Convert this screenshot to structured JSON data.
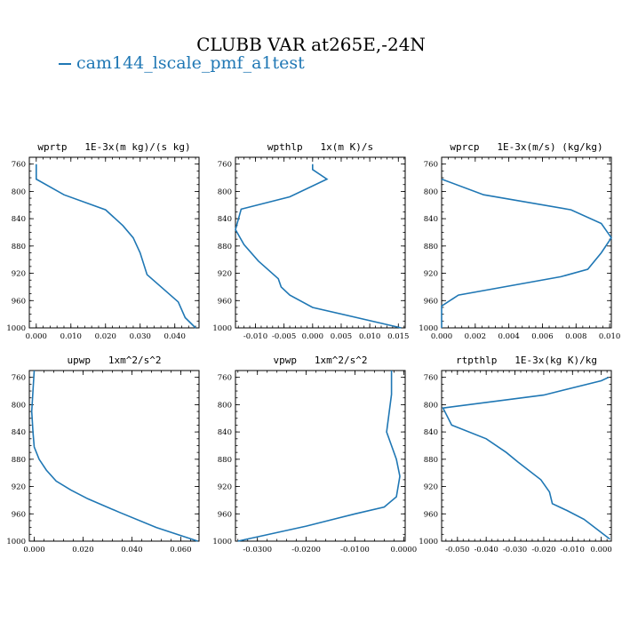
{
  "figure": {
    "title": "CLUBB VAR at265E,-24N",
    "legend_label": "cam144_lscale_pmf_a1test",
    "line_color": "#1f77b4"
  },
  "chart_data": [
    {
      "type": "line",
      "title": "wprtp   1E-3x(m kg)/(s kg)",
      "ylim": [
        1000,
        750
      ],
      "yticks": [
        760,
        800,
        840,
        880,
        920,
        960,
        1000
      ],
      "xlim": [
        -0.002,
        0.047
      ],
      "xticks": [
        0.0,
        0.01,
        0.02,
        0.03,
        0.04
      ],
      "xticklabels": [
        "0.000",
        "0.010",
        "0.020",
        "0.030",
        "0.040"
      ],
      "series": [
        {
          "x": [
            0.0,
            0.0,
            0.008,
            0.02,
            0.025,
            0.028,
            0.03,
            0.032,
            0.041,
            0.043,
            0.046
          ],
          "y": [
            760,
            782,
            805,
            827,
            850,
            868,
            890,
            922,
            962,
            985,
            1000
          ]
        }
      ]
    },
    {
      "type": "line",
      "title": "wpthlp   1x(m K)/s",
      "ylim": [
        1000,
        750
      ],
      "yticks": [
        760,
        800,
        840,
        880,
        920,
        960,
        1000
      ],
      "xlim": [
        -0.0135,
        0.0162
      ],
      "xticks": [
        -0.01,
        -0.005,
        0.0,
        0.005,
        0.01,
        0.015
      ],
      "xticklabels": [
        "-0.010",
        "-0.005",
        "0.000",
        "0.005",
        "0.010",
        "0.015"
      ],
      "series": [
        {
          "x": [
            0.0,
            0.0,
            0.0025,
            -0.004,
            -0.0125,
            -0.0135,
            -0.012,
            -0.0095,
            -0.006,
            -0.0055,
            -0.004,
            0.0,
            0.0155
          ],
          "y": [
            760,
            768,
            782,
            808,
            826,
            856,
            878,
            902,
            928,
            940,
            952,
            970,
            1000
          ]
        }
      ]
    },
    {
      "type": "line",
      "title": "wprcp   1E-3x(m/s) (kg/kg)",
      "ylim": [
        1000,
        750
      ],
      "yticks": [
        760,
        800,
        840,
        880,
        920,
        960,
        1000
      ],
      "xlim": [
        0.0,
        0.0101
      ],
      "xticks": [
        0.0,
        0.002,
        0.004,
        0.006,
        0.008,
        0.01
      ],
      "xticklabels": [
        "0.000",
        "0.002",
        "0.004",
        "0.006",
        "0.008",
        "0.010"
      ],
      "series": [
        {
          "x": [
            0.0,
            0.0025,
            0.0077,
            0.0095,
            0.0101,
            0.0095,
            0.0087,
            0.0071,
            0.001,
            0.0,
            0.0
          ],
          "y": [
            782,
            805,
            827,
            847,
            868,
            890,
            914,
            925,
            952,
            968,
            1000
          ]
        }
      ]
    },
    {
      "type": "line",
      "title": "upwp   1xm^2/s^2",
      "ylim": [
        1000,
        750
      ],
      "yticks": [
        760,
        800,
        840,
        880,
        920,
        960,
        1000
      ],
      "xlim": [
        -0.002,
        0.0675
      ],
      "xticks": [
        0.0,
        0.02,
        0.04,
        0.06
      ],
      "xticklabels": [
        "0.000",
        "0.020",
        "0.040",
        "0.060"
      ],
      "series": [
        {
          "x": [
            0.0,
            -0.0005,
            -0.001,
            -0.0005,
            0.0,
            0.002,
            0.005,
            0.009,
            0.015,
            0.022,
            0.035,
            0.05,
            0.067
          ],
          "y": [
            750,
            780,
            810,
            840,
            862,
            880,
            896,
            912,
            925,
            938,
            958,
            980,
            1000
          ]
        }
      ]
    },
    {
      "type": "line",
      "title": "vpwp   1xm^2/s^2",
      "ylim": [
        1000,
        750
      ],
      "yticks": [
        760,
        800,
        840,
        880,
        920,
        960,
        1000
      ],
      "xlim": [
        -0.0345,
        0.0003
      ],
      "xticks": [
        -0.03,
        -0.02,
        -0.01,
        0.0
      ],
      "xticklabels": [
        "-0.0300",
        "-0.0200",
        "-0.0100",
        "0.0000"
      ],
      "series": [
        {
          "x": [
            -0.0025,
            -0.0025,
            -0.003,
            -0.0035,
            -0.0025,
            -0.0015,
            -0.0008,
            -0.0015,
            -0.004,
            -0.01,
            -0.02,
            -0.034
          ],
          "y": [
            750,
            785,
            812,
            840,
            860,
            880,
            905,
            935,
            950,
            960,
            978,
            1000
          ]
        }
      ]
    },
    {
      "type": "line",
      "title": "rtpthlp   1E-3x(kg K)/kg",
      "ylim": [
        1000,
        750
      ],
      "yticks": [
        760,
        800,
        840,
        880,
        920,
        960,
        1000
      ],
      "xlim": [
        -0.0555,
        0.0035
      ],
      "xticks": [
        -0.05,
        -0.04,
        -0.03,
        -0.02,
        -0.01,
        0.0
      ],
      "xticklabels": [
        "-0.050",
        "-0.040",
        "-0.030",
        "-0.020",
        "-0.010",
        "0.000"
      ],
      "series": [
        {
          "x": [
            0.0025,
            0.0,
            -0.02,
            -0.055,
            -0.052,
            -0.04,
            -0.033,
            -0.029,
            -0.021,
            -0.018,
            -0.017,
            -0.012,
            -0.006,
            0.003
          ],
          "y": [
            760,
            765,
            786,
            805,
            830,
            850,
            870,
            884,
            910,
            928,
            945,
            955,
            968,
            997
          ]
        }
      ]
    }
  ]
}
